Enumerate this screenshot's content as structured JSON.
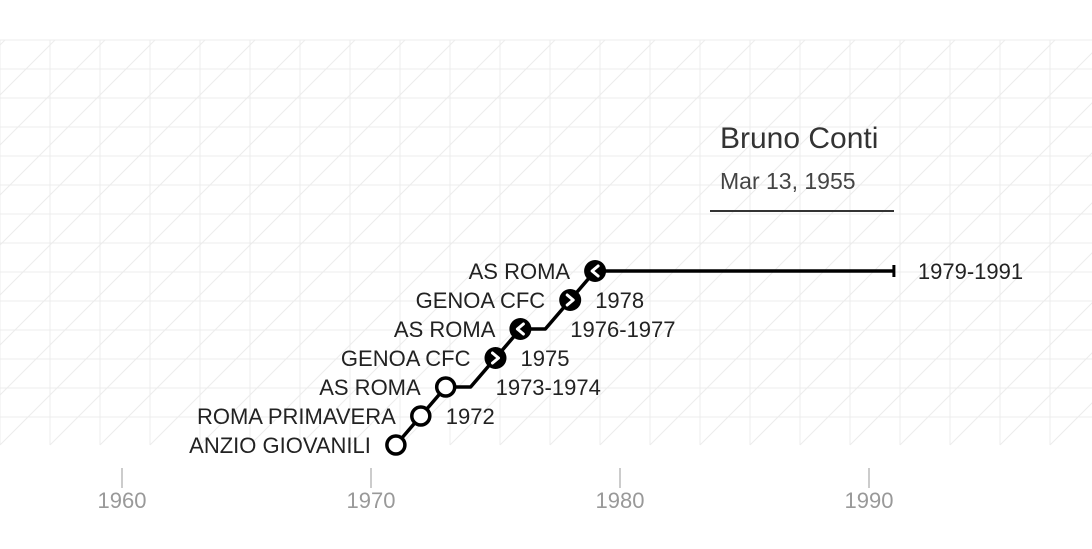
{
  "player": {
    "name": "Bruno Conti",
    "birth_date": "Mar 13, 1955"
  },
  "colors": {
    "line": "#000000",
    "text": "#222222",
    "axis_text": "#999999",
    "grid": "#ececec"
  },
  "chart_data": {
    "type": "line",
    "title": "",
    "xlabel": "",
    "ylabel": "",
    "x_ticks": [
      1960,
      1970,
      1980,
      1990
    ],
    "xlim": [
      1960,
      1990
    ],
    "grid": true,
    "stints": [
      {
        "club": "ANZIO GIOVANILI",
        "start": 1971,
        "end": null,
        "years_label": "",
        "marker": "open"
      },
      {
        "club": "ROMA PRIMAVERA",
        "start": 1972,
        "end": null,
        "years_label": "1972",
        "marker": "open"
      },
      {
        "club": "AS ROMA",
        "start": 1973,
        "end": 1974,
        "years_label": "1973-1974",
        "marker": "open"
      },
      {
        "club": "GENOA CFC",
        "start": 1975,
        "end": null,
        "years_label": "1975",
        "marker": "loan-out"
      },
      {
        "club": "AS ROMA",
        "start": 1976,
        "end": 1977,
        "years_label": "1976-1977",
        "marker": "loan-return"
      },
      {
        "club": "GENOA CFC",
        "start": 1978,
        "end": null,
        "years_label": "1978",
        "marker": "loan-out"
      },
      {
        "club": "AS ROMA",
        "start": 1979,
        "end": 1991,
        "years_label": "1979-1991",
        "marker": "loan-return"
      }
    ]
  }
}
